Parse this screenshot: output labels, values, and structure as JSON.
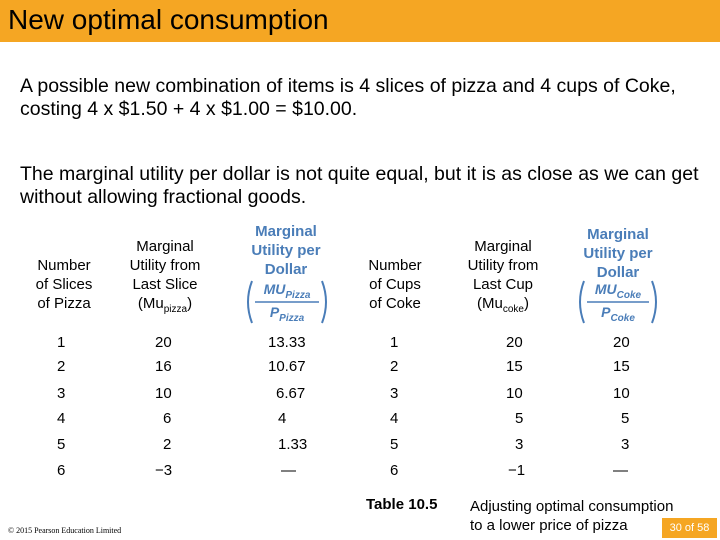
{
  "title": "New optimal consumption",
  "paragraphs": [
    "A possible new combination of items is 4 slices of pizza and 4 cups of Coke, costing 4 x $1.50 + 4 x $1.00 = $10.00.",
    "The marginal utility per dollar is not quite equal, but it is as close as we can get without allowing fractional goods."
  ],
  "table": {
    "headers": {
      "pizza_qty": [
        "Number",
        "of Slices",
        "of Pizza"
      ],
      "pizza_mu": [
        "Marginal",
        "Utility from",
        "Last Slice"
      ],
      "pizza_mu_symbol": "(Mu",
      "pizza_mu_sub": "pizza",
      "pizza_mupd": [
        "Marginal",
        "Utility per",
        "Dollar"
      ],
      "pizza_frac_num": "MU",
      "pizza_frac_num_sub": "Pizza",
      "pizza_frac_den": "P",
      "pizza_frac_den_sub": "Pizza",
      "coke_qty": [
        "Number",
        "of Cups",
        "of Coke"
      ],
      "coke_mu": [
        "Marginal",
        "Utility from",
        "Last Cup"
      ],
      "coke_mu_symbol": "(Mu",
      "coke_mu_sub": "coke",
      "coke_mupd": [
        "Marginal",
        "Utility per",
        "Dollar"
      ],
      "coke_frac_num": "MU",
      "coke_frac_num_sub": "Coke",
      "coke_frac_den": "P",
      "coke_frac_den_sub": "Coke"
    },
    "rows": [
      [
        "1",
        "20",
        "13.33",
        "1",
        "20",
        "20"
      ],
      [
        "2",
        "16",
        "10.67",
        "2",
        "15",
        "15"
      ],
      [
        "3",
        "10",
        "6.67",
        "3",
        "10",
        "10"
      ],
      [
        "4",
        "6",
        "4",
        "4",
        "5",
        "5"
      ],
      [
        "5",
        "2",
        "1.33",
        "5",
        "3",
        "3"
      ],
      [
        "6",
        "−3",
        "—",
        "6",
        "−1",
        "—"
      ]
    ]
  },
  "table_label": "Table 10.5",
  "caption": [
    "Adjusting optimal consumption",
    "to a lower price of pizza"
  ],
  "copyright": "© 2015 Pearson Education Limited",
  "page": "30 of 58",
  "colors": {
    "title_bar": "#f5a623",
    "header_blue": "#4a7db8",
    "badge": "#f5a623"
  }
}
